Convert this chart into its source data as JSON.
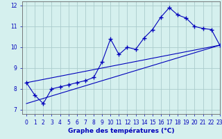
{
  "xlabel": "Graphe des températures (°C)",
  "bg_color": "#d5f0ee",
  "line_color": "#0000bb",
  "grid_color": "#aacccc",
  "axis_color": "#666666",
  "hours": [
    0,
    1,
    2,
    3,
    4,
    5,
    6,
    7,
    8,
    9,
    10,
    11,
    12,
    13,
    14,
    15,
    16,
    17,
    18,
    19,
    20,
    21,
    22,
    23
  ],
  "temps": [
    8.3,
    7.7,
    7.3,
    8.0,
    8.1,
    8.2,
    8.3,
    8.4,
    8.55,
    9.3,
    10.4,
    9.65,
    10.0,
    9.9,
    10.45,
    10.85,
    11.45,
    11.9,
    11.55,
    11.4,
    11.0,
    10.9,
    10.85,
    10.1
  ],
  "line1_x": [
    0,
    23
  ],
  "line1_y": [
    7.3,
    10.1
  ],
  "line2_x": [
    0,
    23
  ],
  "line2_y": [
    8.3,
    10.1
  ],
  "ylim": [
    6.8,
    12.2
  ],
  "xlim": [
    -0.5,
    23
  ],
  "yticks": [
    7,
    8,
    9,
    10,
    11,
    12
  ],
  "xticks": [
    0,
    1,
    2,
    3,
    4,
    5,
    6,
    7,
    8,
    9,
    10,
    11,
    12,
    13,
    14,
    15,
    16,
    17,
    18,
    19,
    20,
    21,
    22,
    23
  ],
  "tick_fontsize": 5.5,
  "xlabel_fontsize": 6.5,
  "marker": "+",
  "markersize": 4,
  "linewidth": 0.8
}
